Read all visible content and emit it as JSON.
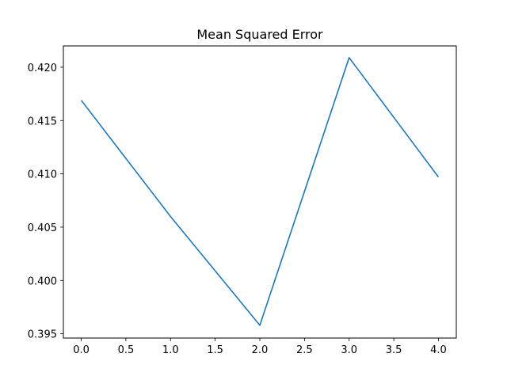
{
  "chart_data": {
    "type": "line",
    "title": "Mean Squared Error",
    "xlabel": "",
    "ylabel": "",
    "x": [
      0,
      1,
      2,
      3,
      4
    ],
    "series": [
      {
        "values": [
          0.4169,
          0.406,
          0.3958,
          0.4209,
          0.4097
        ],
        "color": "#1f77b4"
      }
    ],
    "xlim": [
      -0.2,
      4.2
    ],
    "ylim": [
      0.3946,
      0.422
    ],
    "xticks": [
      0,
      0.5,
      1,
      1.5,
      2,
      2.5,
      3,
      3.5,
      4
    ],
    "xtick_labels": [
      "0.0",
      "0.5",
      "1.0",
      "1.5",
      "2.0",
      "2.5",
      "3.0",
      "3.5",
      "4.0"
    ],
    "yticks": [
      0.395,
      0.4,
      0.405,
      0.41,
      0.415,
      0.42
    ],
    "ytick_labels": [
      "0.395",
      "0.400",
      "0.405",
      "0.410",
      "0.415",
      "0.420"
    ],
    "grid": false,
    "legend": "none"
  }
}
